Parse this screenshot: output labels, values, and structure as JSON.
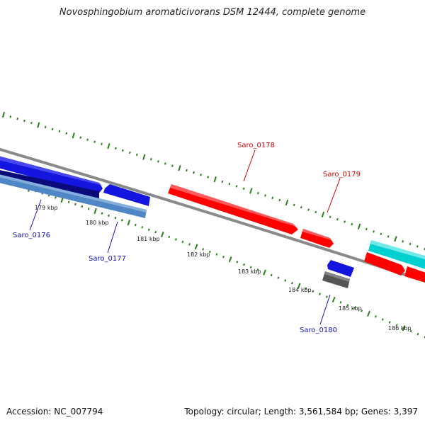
{
  "title": "Novosphingobium aromaticivorans DSM 12444, complete genome",
  "footer": {
    "accession": "Accession: NC_007794",
    "summary": "Topology: circular; Length: 3,561,584 bp; Genes: 3,397"
  },
  "colors": {
    "backbone": "#888888",
    "tick": "#2e7d1e",
    "plus_label": "#d40000",
    "minus_label": "#1010c0"
  },
  "ticks": [
    "179 kbp",
    "180 kbp",
    "181 kbp",
    "182 kbp",
    "183 kbp",
    "184 kbp",
    "185 kbp",
    "186 kbp"
  ],
  "genes": [
    {
      "name": "Saro_0176",
      "strand": "-",
      "color": "#1515e0"
    },
    {
      "name": "Saro_0177",
      "strand": "-",
      "color": "#4f86c6"
    },
    {
      "name": "Saro_0178",
      "strand": "+",
      "color": "#ff0000"
    },
    {
      "name": "Saro_0179",
      "strand": "+",
      "color": "#ff0000"
    },
    {
      "name": "Saro_0180",
      "strand": "-",
      "color": "#1515e0"
    }
  ]
}
